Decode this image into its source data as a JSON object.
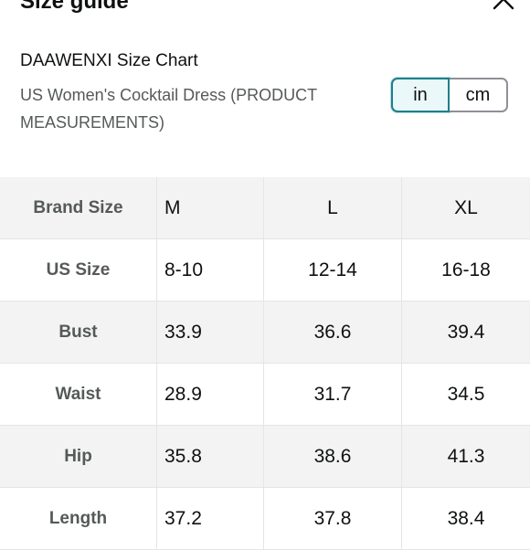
{
  "header": {
    "title": "Size guide",
    "close_icon": "close-icon"
  },
  "chart": {
    "brand_title": "DAAWENXI Size Chart",
    "description": "US Women's Cocktail Dress (PRODUCT MEASUREMENTS)"
  },
  "units": {
    "in_label": "in",
    "cm_label": "cm",
    "selected": "in",
    "selected_color": "#1f7f8b"
  },
  "table": {
    "header": [
      "Brand Size",
      "M",
      "L",
      "XL"
    ],
    "rows": [
      [
        "US Size",
        "8-10",
        "12-14",
        "16-18"
      ],
      [
        "Bust",
        "33.9",
        "36.6",
        "39.4"
      ],
      [
        "Waist",
        "28.9",
        "31.7",
        "34.5"
      ],
      [
        "Hip",
        "35.8",
        "38.6",
        "41.3"
      ],
      [
        "Length",
        "37.2",
        "37.8",
        "38.4"
      ]
    ]
  }
}
